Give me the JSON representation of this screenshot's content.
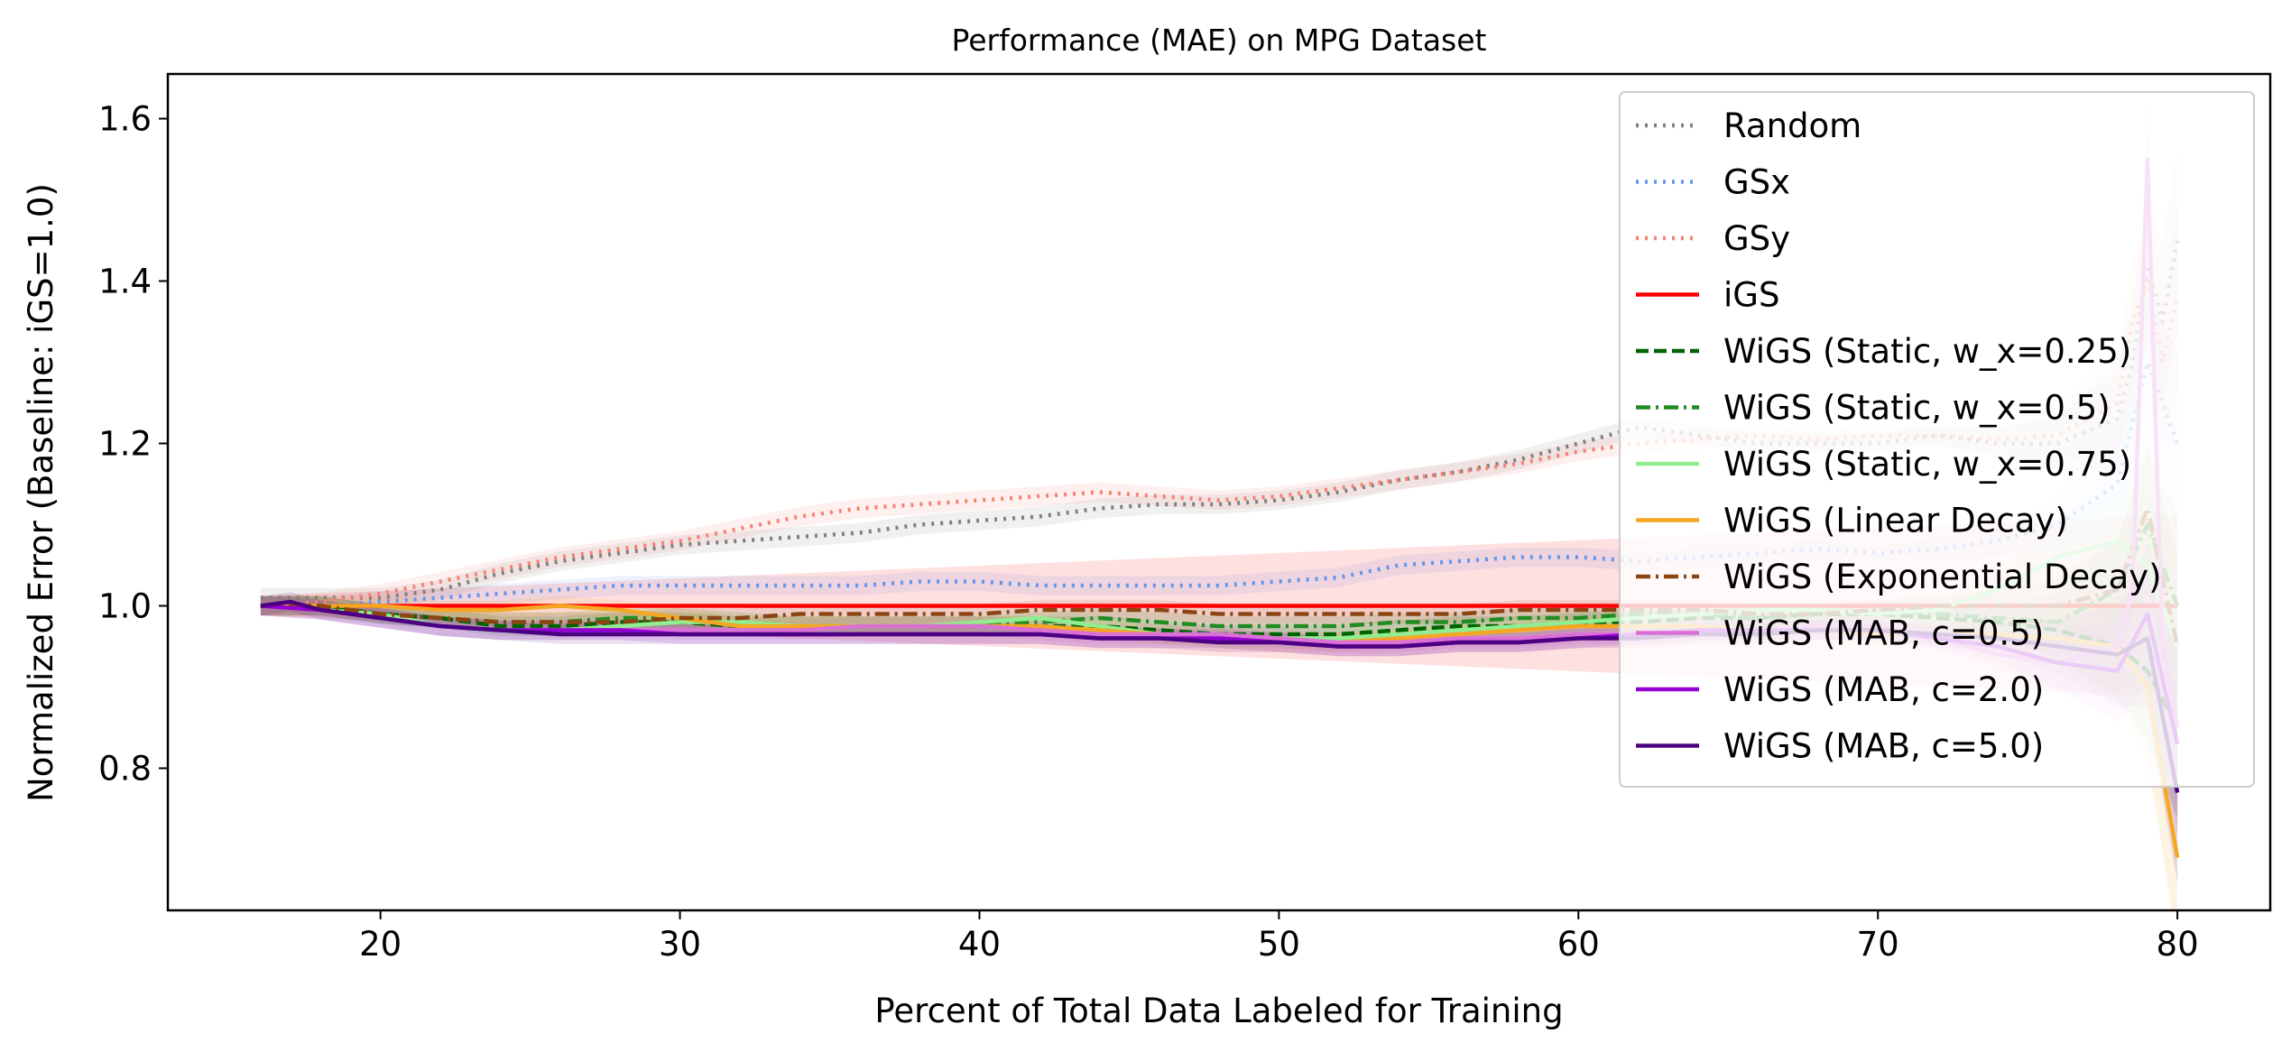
{
  "chart_data": {
    "type": "line",
    "title": "Performance (MAE) on MPG Dataset",
    "xlabel": "Percent of Total Data Labeled for Training",
    "ylabel": "Normalized Error (Baseline: iGS=1.0)",
    "xlim": [
      12.9,
      83.1
    ],
    "ylim": [
      0.625,
      1.655
    ],
    "x_ticks": [
      20,
      30,
      40,
      50,
      60,
      70,
      80
    ],
    "y_ticks": [
      0.8,
      1.0,
      1.2,
      1.4,
      1.6
    ],
    "x_tick_labels": [
      "20",
      "30",
      "40",
      "50",
      "60",
      "70",
      "80"
    ],
    "y_tick_labels": [
      "0.8",
      "1.0",
      "1.2",
      "1.4",
      "1.6"
    ],
    "grid": false,
    "legend_position": "top-right",
    "series": [
      {
        "name": "Random",
        "color": "#808080",
        "style": "dotted",
        "band": true,
        "x": [
          16,
          18,
          20,
          22,
          24,
          26,
          28,
          30,
          32,
          34,
          36,
          38,
          40,
          42,
          44,
          46,
          48,
          50,
          52,
          54,
          56,
          58,
          60,
          62,
          64,
          66,
          68,
          70,
          72,
          74,
          76,
          78,
          78.5,
          79,
          79.5,
          80
        ],
        "y": [
          1.01,
          1.01,
          1.01,
          1.02,
          1.04,
          1.055,
          1.065,
          1.075,
          1.08,
          1.085,
          1.09,
          1.1,
          1.105,
          1.11,
          1.12,
          1.125,
          1.125,
          1.13,
          1.14,
          1.155,
          1.165,
          1.18,
          1.2,
          1.22,
          1.21,
          1.2,
          1.2,
          1.2,
          1.21,
          1.2,
          1.2,
          1.23,
          1.3,
          1.42,
          1.35,
          1.45
        ]
      },
      {
        "name": "GSx",
        "color": "#6495ed",
        "style": "dotted",
        "band": true,
        "x": [
          16,
          18,
          20,
          22,
          24,
          26,
          28,
          30,
          32,
          34,
          36,
          38,
          40,
          42,
          44,
          46,
          48,
          50,
          52,
          54,
          56,
          58,
          60,
          62,
          64,
          66,
          68,
          70,
          72,
          74,
          76,
          78,
          79,
          80
        ],
        "y": [
          1.0,
          1.0,
          1.005,
          1.01,
          1.015,
          1.02,
          1.025,
          1.025,
          1.025,
          1.025,
          1.025,
          1.03,
          1.03,
          1.025,
          1.025,
          1.025,
          1.025,
          1.03,
          1.035,
          1.05,
          1.055,
          1.06,
          1.06,
          1.055,
          1.06,
          1.065,
          1.07,
          1.065,
          1.07,
          1.08,
          1.1,
          1.15,
          1.3,
          1.2
        ]
      },
      {
        "name": "GSy",
        "color": "#fa8072",
        "style": "dotted",
        "band": true,
        "x": [
          16,
          18,
          20,
          22,
          24,
          26,
          28,
          30,
          32,
          34,
          36,
          38,
          40,
          42,
          44,
          46,
          48,
          50,
          52,
          54,
          56,
          58,
          60,
          62,
          64,
          66,
          68,
          70,
          72,
          74,
          76,
          78,
          78.5,
          79,
          79.5,
          80
        ],
        "y": [
          1.0,
          1.005,
          1.015,
          1.03,
          1.045,
          1.06,
          1.07,
          1.08,
          1.095,
          1.11,
          1.12,
          1.125,
          1.13,
          1.135,
          1.14,
          1.135,
          1.13,
          1.135,
          1.145,
          1.155,
          1.165,
          1.175,
          1.19,
          1.2,
          1.205,
          1.21,
          1.205,
          1.21,
          1.21,
          1.205,
          1.21,
          1.25,
          1.35,
          1.4,
          1.3,
          1.38
        ]
      },
      {
        "name": "iGS",
        "color": "#ff0000",
        "style": "solid",
        "band": true,
        "x": [
          16,
          80
        ],
        "y": [
          1.0,
          1.0
        ]
      },
      {
        "name": "WiGS (Static, w_x=0.25)",
        "color": "#006400",
        "style": "dashed",
        "band": true,
        "x": [
          16,
          18,
          20,
          22,
          24,
          26,
          28,
          30,
          32,
          34,
          36,
          38,
          40,
          42,
          44,
          46,
          48,
          50,
          52,
          54,
          56,
          58,
          60,
          62,
          64,
          66,
          68,
          70,
          72,
          74,
          76,
          78,
          79,
          80
        ],
        "y": [
          1.0,
          1.0,
          0.99,
          0.985,
          0.975,
          0.975,
          0.98,
          0.98,
          0.975,
          0.975,
          0.975,
          0.975,
          0.975,
          0.975,
          0.975,
          0.97,
          0.965,
          0.965,
          0.965,
          0.97,
          0.975,
          0.975,
          0.98,
          0.98,
          0.985,
          0.985,
          0.99,
          0.99,
          0.985,
          0.98,
          0.97,
          0.95,
          0.92,
          0.85
        ]
      },
      {
        "name": "WiGS (Static, w_x=0.5)",
        "color": "#228b22",
        "style": "dashdot",
        "band": true,
        "x": [
          16,
          18,
          20,
          22,
          24,
          26,
          28,
          30,
          32,
          34,
          36,
          38,
          40,
          42,
          44,
          46,
          48,
          50,
          52,
          54,
          56,
          58,
          60,
          62,
          64,
          66,
          68,
          70,
          72,
          74,
          76,
          78,
          79,
          80
        ],
        "y": [
          1.0,
          1.0,
          0.99,
          0.985,
          0.98,
          0.98,
          0.985,
          0.985,
          0.98,
          0.975,
          0.975,
          0.975,
          0.975,
          0.98,
          0.985,
          0.98,
          0.975,
          0.975,
          0.975,
          0.98,
          0.98,
          0.985,
          0.985,
          0.99,
          0.99,
          0.985,
          0.99,
          0.995,
          0.99,
          0.985,
          0.98,
          1.02,
          1.1,
          1.0
        ]
      },
      {
        "name": "WiGS (Static, w_x=0.75)",
        "color": "#90ee90",
        "style": "solid",
        "band": true,
        "x": [
          16,
          18,
          20,
          22,
          24,
          26,
          28,
          30,
          32,
          34,
          36,
          38,
          40,
          42,
          44,
          46,
          48,
          50,
          52,
          54,
          56,
          58,
          60,
          62,
          64,
          66,
          68,
          70,
          72,
          74,
          76,
          78,
          79,
          80
        ],
        "y": [
          1.0,
          0.995,
          0.99,
          0.975,
          0.97,
          0.97,
          0.975,
          0.98,
          0.98,
          0.975,
          0.975,
          0.975,
          0.98,
          0.985,
          0.975,
          0.965,
          0.96,
          0.96,
          0.96,
          0.965,
          0.97,
          0.975,
          0.98,
          0.985,
          0.99,
          0.995,
          0.995,
          0.99,
          0.995,
          1.02,
          1.06,
          1.08,
          1.05,
          0.95
        ]
      },
      {
        "name": "WiGS (Linear Decay)",
        "color": "#f5a623",
        "style": "solid",
        "band": true,
        "x": [
          16,
          18,
          20,
          22,
          24,
          26,
          28,
          30,
          32,
          34,
          36,
          38,
          40,
          42,
          44,
          46,
          48,
          50,
          52,
          54,
          56,
          58,
          60,
          62,
          64,
          66,
          68,
          70,
          72,
          74,
          76,
          78,
          79,
          80
        ],
        "y": [
          1.0,
          1.0,
          1.0,
          0.995,
          0.995,
          1.0,
          0.995,
          0.985,
          0.975,
          0.975,
          0.975,
          0.975,
          0.975,
          0.975,
          0.97,
          0.965,
          0.96,
          0.955,
          0.955,
          0.96,
          0.965,
          0.97,
          0.975,
          0.975,
          0.975,
          0.97,
          0.97,
          0.965,
          0.965,
          0.965,
          0.96,
          0.95,
          0.9,
          0.69
        ]
      },
      {
        "name": "WiGS (Exponential Decay)",
        "color": "#8b4513",
        "style": "dashdot",
        "band": true,
        "x": [
          16,
          18,
          20,
          22,
          24,
          26,
          28,
          30,
          32,
          34,
          36,
          38,
          40,
          42,
          44,
          46,
          48,
          50,
          52,
          54,
          56,
          58,
          60,
          62,
          64,
          66,
          68,
          70,
          72,
          74,
          76,
          78,
          79,
          80
        ],
        "y": [
          1.0,
          1.0,
          0.99,
          0.985,
          0.98,
          0.98,
          0.98,
          0.985,
          0.985,
          0.99,
          0.99,
          0.99,
          0.99,
          0.995,
          0.995,
          0.995,
          0.99,
          0.99,
          0.99,
          0.99,
          0.99,
          0.995,
          0.995,
          0.995,
          0.995,
          0.99,
          0.99,
          0.995,
          1.0,
          1.0,
          1.0,
          1.02,
          1.12,
          0.95
        ]
      },
      {
        "name": "WiGS (MAB, c=0.5)",
        "color": "#da70d6",
        "style": "solid",
        "band": true,
        "x": [
          16,
          18,
          20,
          22,
          24,
          26,
          28,
          30,
          32,
          34,
          36,
          38,
          40,
          42,
          44,
          46,
          48,
          50,
          52,
          54,
          56,
          58,
          60,
          62,
          64,
          66,
          68,
          70,
          72,
          74,
          76,
          78,
          78.5,
          79,
          79.5,
          80
        ],
        "y": [
          1.0,
          0.995,
          0.985,
          0.975,
          0.97,
          0.97,
          0.97,
          0.97,
          0.97,
          0.97,
          0.975,
          0.975,
          0.975,
          0.97,
          0.965,
          0.965,
          0.965,
          0.96,
          0.955,
          0.955,
          0.96,
          0.96,
          0.965,
          0.965,
          0.97,
          0.97,
          0.975,
          0.975,
          0.96,
          0.94,
          0.93,
          0.95,
          1.02,
          1.55,
          0.95,
          0.85
        ]
      },
      {
        "name": "WiGS (MAB, c=2.0)",
        "color": "#9400d3",
        "style": "solid",
        "band": true,
        "x": [
          16,
          18,
          20,
          22,
          24,
          26,
          28,
          30,
          32,
          34,
          36,
          38,
          40,
          42,
          44,
          46,
          48,
          50,
          52,
          54,
          56,
          58,
          60,
          62,
          64,
          66,
          68,
          70,
          72,
          74,
          76,
          78,
          79,
          80
        ],
        "y": [
          1.0,
          0.995,
          0.985,
          0.975,
          0.97,
          0.97,
          0.97,
          0.965,
          0.965,
          0.965,
          0.965,
          0.965,
          0.965,
          0.965,
          0.96,
          0.96,
          0.96,
          0.955,
          0.95,
          0.95,
          0.955,
          0.955,
          0.96,
          0.965,
          0.97,
          0.97,
          0.97,
          0.97,
          0.96,
          0.95,
          0.93,
          0.92,
          0.99,
          0.83
        ]
      },
      {
        "name": "WiGS (MAB, c=5.0)",
        "color": "#4b0082",
        "style": "solid",
        "band": true,
        "x": [
          16,
          17,
          18,
          20,
          22,
          24,
          26,
          28,
          30,
          32,
          34,
          36,
          38,
          40,
          42,
          44,
          46,
          48,
          50,
          52,
          54,
          56,
          58,
          60,
          62,
          64,
          66,
          68,
          70,
          72,
          74,
          76,
          78,
          79,
          80
        ],
        "y": [
          1.0,
          1.005,
          0.995,
          0.985,
          0.975,
          0.97,
          0.965,
          0.965,
          0.965,
          0.965,
          0.965,
          0.965,
          0.965,
          0.965,
          0.965,
          0.96,
          0.96,
          0.955,
          0.955,
          0.95,
          0.95,
          0.955,
          0.955,
          0.96,
          0.96,
          0.965,
          0.965,
          0.97,
          0.97,
          0.965,
          0.96,
          0.95,
          0.94,
          0.96,
          0.77
        ]
      }
    ]
  }
}
